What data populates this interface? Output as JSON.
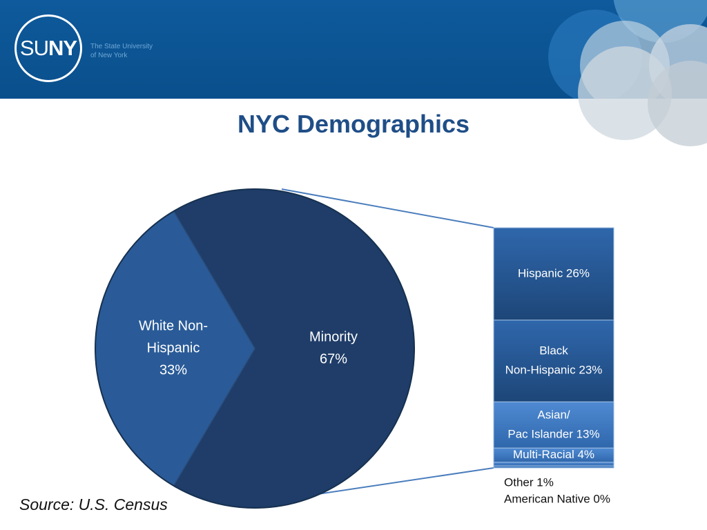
{
  "header": {
    "logo_prefix": "SU",
    "logo_suffix": "NY",
    "tagline_line1": "The State University",
    "tagline_line2": "of New York"
  },
  "title": "NYC Demographics",
  "source": "Source: U.S. Census",
  "colors": {
    "header": "#0e5a9c",
    "title": "#1f4e87",
    "pie_white": "#2a5b98",
    "pie_minority": "#1f3d68",
    "bar_dark": "#214e85",
    "bar_light": "#3d78c4",
    "connector": "#4a7dbd"
  },
  "chart_data": {
    "type": "bar-of-pie",
    "pie": {
      "slices": [
        {
          "label_lines": [
            "White Non-",
            "Hispanic",
            "33%"
          ],
          "value": 33
        },
        {
          "label_lines": [
            "Minority",
            "67%"
          ],
          "value": 67
        }
      ]
    },
    "stack": {
      "segments": [
        {
          "label_lines": [
            "Hispanic 26%"
          ],
          "value": 26
        },
        {
          "label_lines": [
            "Black",
            "Non-Hispanic 23%"
          ],
          "value": 23
        },
        {
          "label_lines": [
            "Asian/",
            "Pac Islander 13%"
          ],
          "value": 13
        },
        {
          "label_lines": [
            "Multi-Racial 4%"
          ],
          "value": 4
        },
        {
          "label_lines": [
            "Other 1%"
          ],
          "value": 1
        },
        {
          "label_lines": [
            "American Native 0%"
          ],
          "value": 0
        }
      ]
    }
  }
}
